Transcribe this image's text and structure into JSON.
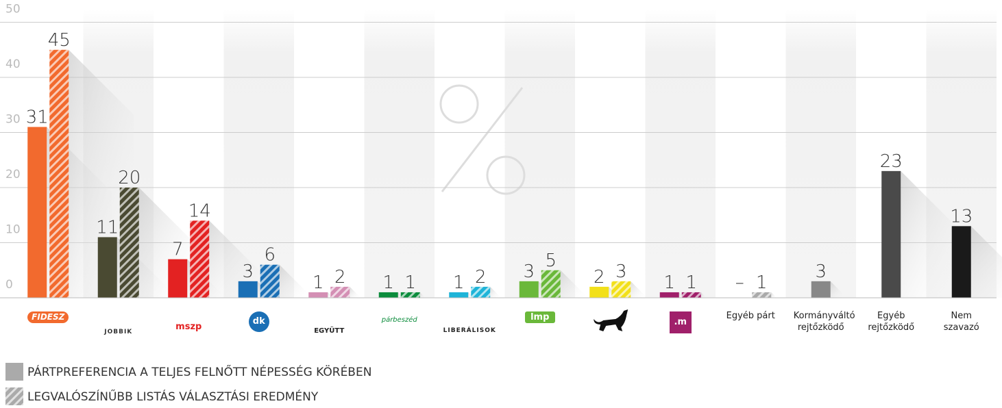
{
  "chart_data": {
    "type": "bar",
    "categories": [
      "FIDESZ",
      "JOBBIK",
      "mszp",
      "dk",
      "EGYÜTT",
      "párbeszéd",
      "LIBERÁLISOK",
      "lmp",
      null,
      ".m",
      "Egyéb párt",
      "Kormányváltó rejtőzködő",
      "Egyéb rejtőzködő",
      "Nem szavazó"
    ],
    "category_colors": [
      "#f26a2e",
      "#4a4a32",
      "#e32222",
      "#1a6fb5",
      "#d48fb4",
      "#0c8c3c",
      "#1eb4d8",
      "#6ab83a",
      "#f2e01a",
      "#a0206a",
      "#aaaaaa",
      "#888888",
      "#4a4a4a",
      "#1a1a1a"
    ],
    "series": [
      {
        "name": "PÁRTPREFERENCIA A TELJES FELNŐTT NÉPESSÉG KÖRÉBEN",
        "color": "#aaaaaa",
        "values": [
          31,
          11,
          7,
          3,
          1,
          1,
          1,
          3,
          2,
          1,
          null,
          3,
          23,
          13
        ],
        "value_labels": [
          "31",
          "11",
          "7",
          "3",
          "1",
          "1",
          "1",
          "3",
          "2",
          "1",
          "–",
          "3",
          "23",
          "13"
        ]
      },
      {
        "name": "LEGVALÓSZÍNŰBB LISTÁS VÁLASZTÁSI EREDMÉNY",
        "color": "#aaaaaa",
        "pattern": "hatched",
        "values": [
          45,
          20,
          14,
          6,
          2,
          1,
          2,
          5,
          3,
          1,
          1,
          null,
          null,
          null
        ]
      }
    ],
    "ylim": [
      0,
      50
    ],
    "yticks": [
      0,
      10,
      20,
      30,
      40,
      50
    ],
    "grid": true
  }
}
